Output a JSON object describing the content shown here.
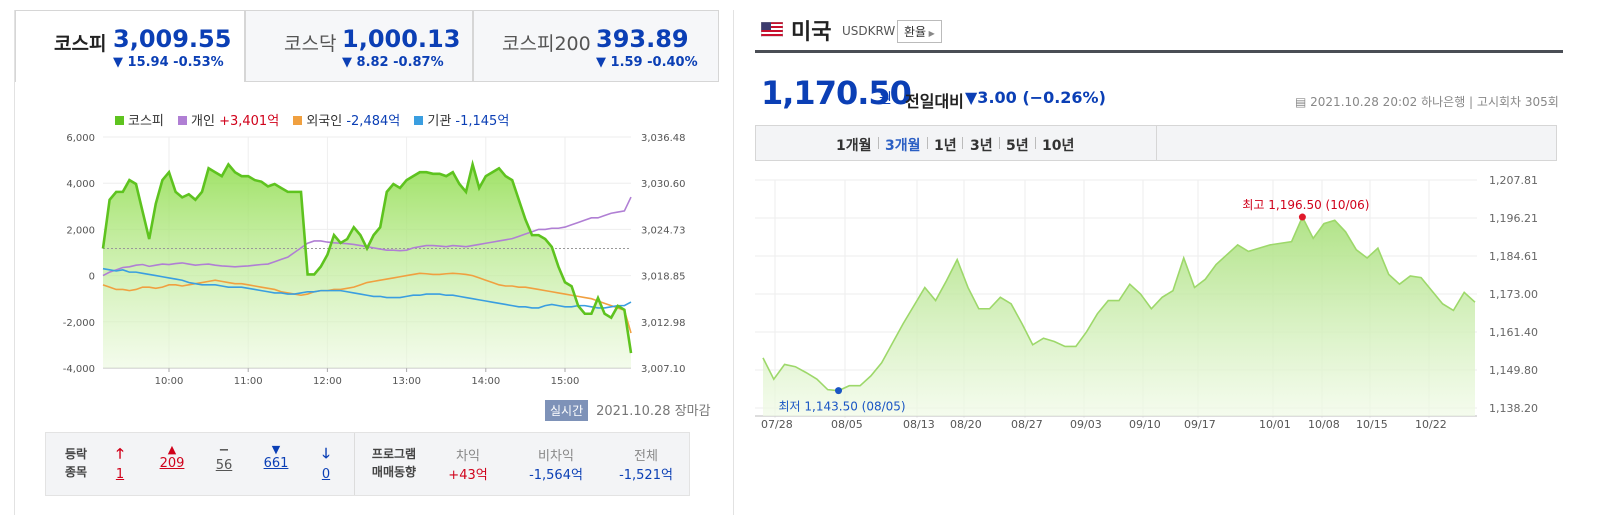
{
  "left": {
    "tabs": [
      {
        "name": "코스피",
        "value": "3,009.55",
        "change": "▼ 15.94 -0.53%"
      },
      {
        "name": "코스닥",
        "value": "1,000.13",
        "change": "▼ 8.82 -0.87%"
      },
      {
        "name": "코스피200",
        "value": "393.89",
        "change": "▼ 1.59 -0.40%"
      }
    ],
    "legend": {
      "kospi": "코스피",
      "individual": "개인",
      "individual_val": "+3,401억",
      "foreign": "외국인",
      "foreign_val": "-2,484억",
      "institution": "기관",
      "institution_val": "-1,145억"
    },
    "realtime": "실시간",
    "timestamp": "2021.10.28 장마감",
    "breadth": {
      "label1": "등락",
      "label2": "종목",
      "upper_limit": "1",
      "up": "209",
      "flat": "56",
      "down": "661",
      "lower_limit": "0"
    },
    "program": {
      "label1": "프로그램",
      "label2": "매매동향",
      "arb_label": "차익",
      "arb": "+43억",
      "nonarb_label": "비차익",
      "nonarb": "-1,564억",
      "total_label": "전체",
      "total": "-1,521억"
    }
  },
  "right": {
    "country": "미국",
    "code": "USDKRW",
    "fx_button": "환율",
    "price": "1,170.50",
    "unit": "원",
    "compare_label": "전일대비",
    "compare_value": "▼3.00 (−0.26%)",
    "meta": "2021.10.28 20:02 하나은행 | 고시회차 305회",
    "periods": [
      "1개월",
      "3개월",
      "1년",
      "3년",
      "5년",
      "10년"
    ],
    "active_period": "3개월"
  },
  "colors": {
    "kospi": "#5ec31f",
    "individual": "#b07fd4",
    "foreign": "#f0a040",
    "institution": "#3a9ee0",
    "down_blue": "#0b3fb5",
    "up_red": "#d0021b"
  },
  "chart_data": [
    {
      "type": "line",
      "title": "",
      "x_ticks": [
        "10:00",
        "11:00",
        "12:00",
        "13:00",
        "14:00",
        "15:00"
      ],
      "y_left_ticks": [
        "6,000",
        "4,000",
        "2,000",
        "0",
        "-2,000",
        "-4,000"
      ],
      "y_right_ticks": [
        "3,036.48",
        "3,030.60",
        "3,024.73",
        "3,018.85",
        "3,012.98",
        "3,007.10"
      ],
      "ylim_left": [
        -4000,
        6000
      ],
      "ylim_right": [
        3007.1,
        3036.48
      ],
      "x": [
        0,
        5,
        10,
        15,
        20,
        25,
        30,
        35,
        40,
        45,
        50,
        55,
        60,
        65,
        70,
        75,
        80,
        85,
        90,
        95,
        100,
        105,
        110,
        115,
        120,
        125,
        130,
        135,
        140,
        145,
        150,
        155,
        160,
        165,
        170,
        175,
        180,
        185,
        190,
        195,
        200,
        205,
        210,
        215,
        220,
        225,
        230,
        235,
        240,
        245,
        250,
        255,
        260,
        265,
        270,
        275,
        280,
        285,
        290,
        295,
        300,
        305,
        310,
        315,
        320,
        325,
        330,
        335,
        340,
        345,
        350,
        355,
        360,
        365,
        370,
        375,
        380,
        385,
        390,
        395,
        400
      ],
      "series": [
        {
          "name": "코스피",
          "axis": "right",
          "values": [
            3022.3,
            3028.5,
            3029.5,
            3029.5,
            3031.0,
            3030.5,
            3027.0,
            3023.5,
            3028.0,
            3031.0,
            3032.0,
            3029.5,
            3028.8,
            3029.2,
            3028.5,
            3029.5,
            3032.5,
            3032.0,
            3031.5,
            3033.0,
            3032.0,
            3031.5,
            3031.5,
            3031.0,
            3030.8,
            3030.2,
            3030.5,
            3030.0,
            3029.5,
            3029.5,
            3029.5,
            3019.0,
            3019.0,
            3020.0,
            3021.5,
            3024.0,
            3023.0,
            3023.5,
            3025.0,
            3024.0,
            3022.3,
            3024.0,
            3025.0,
            3029.5,
            3030.5,
            3030.0,
            3031.0,
            3031.5,
            3032.0,
            3032.0,
            3031.8,
            3031.8,
            3031.5,
            3032.0,
            3030.5,
            3029.5,
            3033.0,
            3030.0,
            3031.5,
            3032.0,
            3032.5,
            3031.5,
            3031.0,
            3028.5,
            3026.0,
            3024.0,
            3024.0,
            3023.5,
            3022.5,
            3020.0,
            3018.0,
            3017.5,
            3015.0,
            3014.0,
            3014.0,
            3016.0,
            3014.0,
            3013.5,
            3015.0,
            3014.5,
            3009.0
          ]
        },
        {
          "name": "개인",
          "axis": "left",
          "values": [
            0,
            150,
            250,
            350,
            380,
            450,
            480,
            400,
            450,
            500,
            480,
            520,
            550,
            500,
            450,
            480,
            500,
            450,
            420,
            400,
            380,
            400,
            420,
            450,
            480,
            500,
            600,
            700,
            800,
            1000,
            1200,
            1400,
            1500,
            1500,
            1450,
            1420,
            1400,
            1380,
            1350,
            1300,
            1250,
            1200,
            1150,
            1100,
            1100,
            1080,
            1100,
            1200,
            1250,
            1300,
            1300,
            1280,
            1250,
            1300,
            1280,
            1250,
            1300,
            1350,
            1400,
            1450,
            1500,
            1550,
            1600,
            1700,
            1800,
            1900,
            2000,
            2000,
            2050,
            2050,
            2100,
            2200,
            2300,
            2400,
            2500,
            2500,
            2600,
            2700,
            2750,
            2800,
            3401
          ]
        },
        {
          "name": "외국인",
          "axis": "left",
          "values": [
            -400,
            -500,
            -600,
            -600,
            -650,
            -600,
            -500,
            -500,
            -550,
            -500,
            -400,
            -400,
            -450,
            -400,
            -350,
            -300,
            -250,
            -200,
            -250,
            -300,
            -350,
            -350,
            -400,
            -450,
            -500,
            -550,
            -600,
            -700,
            -750,
            -800,
            -850,
            -800,
            -700,
            -650,
            -650,
            -600,
            -600,
            -550,
            -500,
            -400,
            -300,
            -250,
            -200,
            -150,
            -100,
            -50,
            0,
            50,
            100,
            80,
            50,
            50,
            80,
            100,
            80,
            50,
            0,
            -100,
            -200,
            -300,
            -400,
            -450,
            -450,
            -500,
            -500,
            -550,
            -600,
            -650,
            -700,
            -750,
            -800,
            -850,
            -900,
            -950,
            -1000,
            -1100,
            -1200,
            -1300,
            -1400,
            -1500,
            -2484
          ]
        },
        {
          "name": "기관",
          "axis": "left",
          "values": [
            300,
            250,
            200,
            250,
            150,
            150,
            100,
            50,
            0,
            -50,
            -100,
            -150,
            -200,
            -300,
            -350,
            -400,
            -400,
            -400,
            -450,
            -500,
            -500,
            -500,
            -550,
            -600,
            -650,
            -700,
            -750,
            -750,
            -800,
            -800,
            -750,
            -700,
            -700,
            -650,
            -650,
            -650,
            -650,
            -700,
            -750,
            -800,
            -850,
            -900,
            -900,
            -950,
            -950,
            -950,
            -900,
            -850,
            -850,
            -800,
            -800,
            -800,
            -850,
            -850,
            -900,
            -950,
            -1000,
            -1050,
            -1100,
            -1150,
            -1200,
            -1250,
            -1300,
            -1350,
            -1350,
            -1400,
            -1400,
            -1300,
            -1250,
            -1300,
            -1350,
            -1350,
            -1300,
            -1300,
            -1350,
            -1400,
            -1400,
            -1350,
            -1300,
            -1300,
            -1145
          ]
        }
      ]
    },
    {
      "type": "area",
      "title": "",
      "x_ticks": [
        "07/28",
        "08/05",
        "08/13",
        "08/20",
        "08/27",
        "09/03",
        "09/10",
        "09/17",
        "10/01",
        "10/08",
        "10/15",
        "10/22"
      ],
      "y_ticks": [
        "1,207.81",
        "1,196.21",
        "1,184.61",
        "1,173.00",
        "1,161.40",
        "1,149.80",
        "1,138.20"
      ],
      "ylim": [
        1138.2,
        1207.81
      ],
      "annotations": {
        "max": "최고 1,196.50 (10/06)",
        "min": "최저 1,143.50 (08/05)"
      },
      "values": [
        1153.5,
        1147.0,
        1151.5,
        1150.8,
        1149.0,
        1147.0,
        1143.8,
        1143.5,
        1145.0,
        1145.0,
        1148.0,
        1152.0,
        1158.0,
        1164.0,
        1169.5,
        1175.0,
        1171.0,
        1177.0,
        1183.5,
        1175.0,
        1168.5,
        1168.5,
        1172.0,
        1170.0,
        1164.0,
        1157.5,
        1159.5,
        1158.5,
        1157.0,
        1157.0,
        1161.5,
        1167.0,
        1171.0,
        1171.0,
        1176.0,
        1173.0,
        1168.5,
        1172.0,
        1174.0,
        1184.0,
        1175.0,
        1177.5,
        1182.0,
        1185.0,
        1188.0,
        1186.0,
        1187.0,
        1188.0,
        1188.5,
        1189.0,
        1196.5,
        1190.0,
        1194.5,
        1195.5,
        1192.0,
        1186.5,
        1184.0,
        1187.0,
        1179.0,
        1176.0,
        1178.5,
        1178.0,
        1174.0,
        1170.0,
        1168.0,
        1173.5,
        1170.5
      ]
    }
  ]
}
